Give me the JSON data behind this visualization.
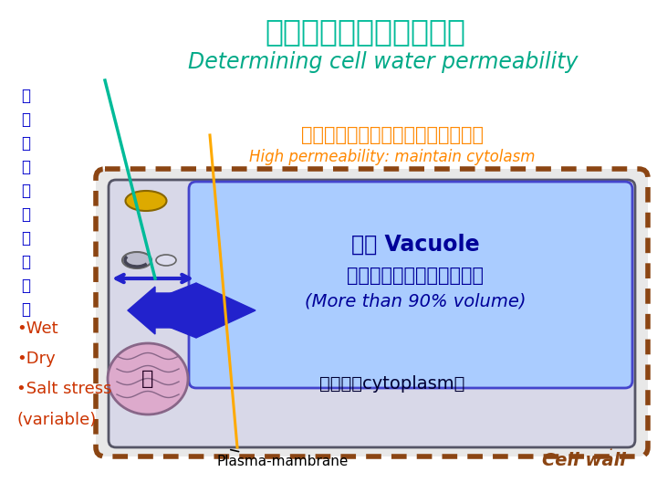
{
  "bg_color": "#ffffff",
  "title_jp": "細胞の水透過性をきめる",
  "title_en": "Determining cell water permeability",
  "title_jp_color": "#00bb99",
  "title_en_color": "#00aa88",
  "side_label_chars": [
    "細",
    "胞",
    "外",
    "（",
    "土",
    "壌",
    "）",
    "水",
    "環",
    "境"
  ],
  "side_label_color": "#0000cc",
  "subtitle_jp": "水透過性高い：細胞質の体積を維持",
  "subtitle_en": "High permeability: maintain cytolasm",
  "subtitle_jp_color": "#ff8800",
  "subtitle_en_color": "#ff8800",
  "cell_wall_outer_color": "#8B4513",
  "cell_bg_color": "#d8d8e8",
  "vacuole_color": "#aaccff",
  "vacuole_border_color": "#4444cc",
  "vacuole_text1": "液胞 Vacuole",
  "vacuole_text2": "（細胞体積の９０％以上）",
  "vacuole_text3": "(More than 90% volume)",
  "vacuole_text_color": "#000099",
  "cytoplasm_text": "細胞質（cytoplasm）",
  "cytoplasm_text_color": "#000033",
  "nucleus_text": "核",
  "nucleus_text_color": "#220022",
  "plasma_text": "Plasma-mambrane",
  "plasma_text_color": "#000000",
  "cellwall_text": "Cell wall",
  "cellwall_text_color": "#8B4513",
  "bullet_items": [
    "•Wet",
    "•Dry",
    "•Salt stress",
    "(variable)"
  ],
  "bullet_color": "#cc3300",
  "arrow_color": "#2222cc",
  "line_teal_color": "#00bb99",
  "line_orange_color": "#ffaa00",
  "organelle_yellow_color": "#ddaa00",
  "organelle_gray_color": "#aaaaaa",
  "nucleus_fill_color": "#ddaacc",
  "nucleus_edge_color": "#886688"
}
